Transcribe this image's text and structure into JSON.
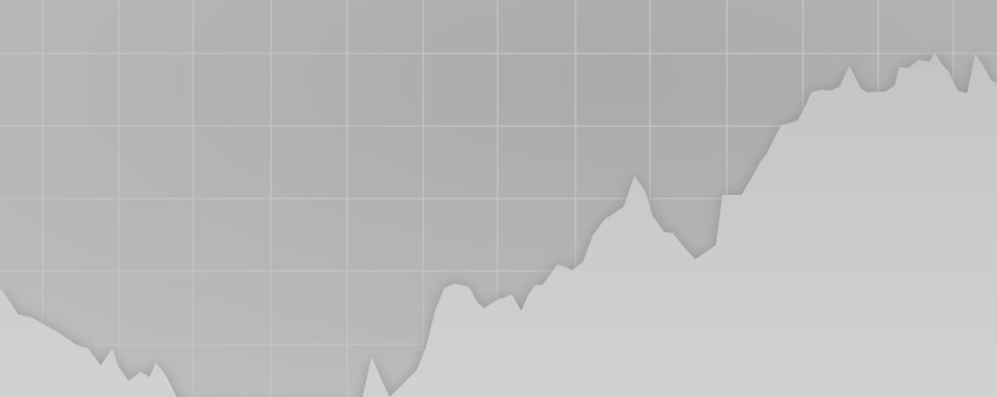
{
  "chart_data": {
    "type": "area",
    "title": "",
    "xlabel": "",
    "ylabel": "",
    "grid": true,
    "legend": "none",
    "y_range": [
      0,
      438
    ],
    "x": [
      0,
      8,
      20,
      35,
      45,
      60,
      72,
      85,
      97,
      111,
      124,
      131,
      142,
      155,
      165,
      172,
      183,
      195,
      210,
      230,
      250,
      270,
      290,
      310,
      330,
      350,
      370,
      390,
      400,
      410,
      418,
      425,
      430,
      445,
      460,
      470,
      480,
      490,
      501,
      517,
      527,
      534,
      548,
      565,
      575,
      583,
      590,
      599,
      606,
      615,
      623,
      631,
      643,
      654,
      667,
      678,
      688,
      700,
      712,
      720,
      733,
      742,
      755,
      767,
      779,
      790,
      797,
      806,
      818,
      830,
      838,
      846,
      854,
      862,
      870,
      880,
      888,
      895,
      906,
      916,
      926,
      937,
      944,
      950,
      957,
      967,
      977,
      987,
      992,
      1002,
      1014,
      1026,
      1031,
      1040,
      1046,
      1057,
      1067,
      1076,
      1088,
      1094,
      1100
    ],
    "values": [
      120,
      110,
      91,
      88,
      82,
      74,
      66,
      57,
      54,
      35,
      53,
      33,
      18,
      28,
      22,
      38,
      24,
      0,
      -10,
      -15,
      -15,
      -12,
      -10,
      -15,
      -12,
      -10,
      -15,
      -10,
      0,
      44,
      26,
      10,
      0,
      15,
      30,
      55,
      95,
      120,
      125,
      122,
      104,
      98,
      107,
      113,
      95,
      113,
      123,
      124,
      134,
      146,
      144,
      140,
      149,
      178,
      196,
      203,
      210,
      244,
      227,
      200,
      182,
      181,
      165,
      152,
      160,
      168,
      223,
      223,
      223,
      243,
      258,
      269,
      285,
      300,
      302,
      305,
      320,
      336,
      339,
      338,
      342,
      365,
      352,
      340,
      336,
      337,
      337,
      344,
      364,
      363,
      372,
      370,
      380,
      366,
      360,
      338,
      335,
      379,
      360,
      349,
      346
    ],
    "colors": {
      "background": "#b3b3b3",
      "area_fill": "#cfcfcf",
      "grid_line": "#c3c3c3"
    }
  }
}
